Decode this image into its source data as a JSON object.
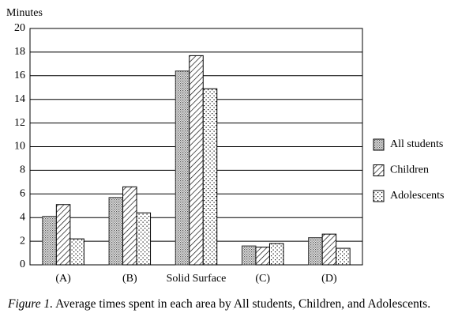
{
  "chart_data": {
    "type": "bar",
    "y_axis_label": "Minutes",
    "categories": [
      "(A)",
      "(B)",
      "Solid Surface",
      "(C)",
      "(D)"
    ],
    "series": [
      {
        "name": "All students",
        "color": "#9a9a9a",
        "pattern": "dense-dots",
        "values": [
          4.1,
          5.7,
          16.4,
          1.6,
          2.3
        ]
      },
      {
        "name": "Children",
        "color": "#000000",
        "pattern": "hatch",
        "values": [
          5.1,
          6.6,
          17.7,
          1.5,
          2.6
        ]
      },
      {
        "name": "Adolescents",
        "color": "#000000",
        "pattern": "sparse-dots",
        "values": [
          2.2,
          4.4,
          14.9,
          1.8,
          1.4
        ]
      }
    ],
    "ylim": [
      0,
      20
    ],
    "yticks": [
      0,
      2,
      4,
      6,
      8,
      10,
      12,
      14,
      16,
      18,
      20
    ],
    "grid": true,
    "legend": "right",
    "caption_label": "Figure 1.",
    "caption": "Average times spent in each area by All students, Children, and Adolescents."
  }
}
